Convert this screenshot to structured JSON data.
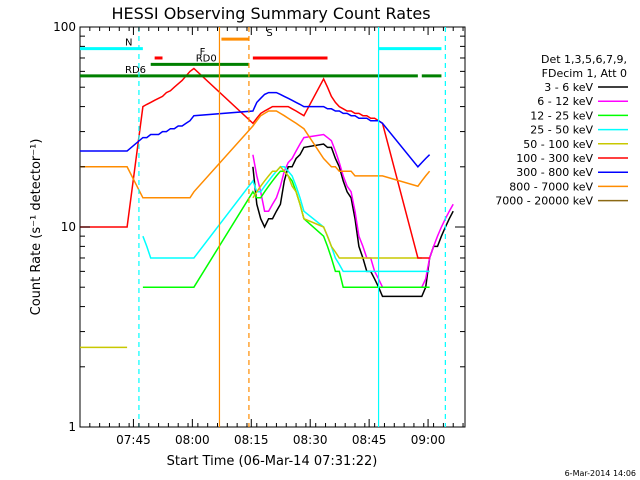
{
  "chart_data": {
    "type": "line",
    "title": "HESSI Observing Summary Count Rates",
    "xlabel": "Start Time (06-Mar-14 07:31:22)",
    "ylabel": "Count Rate (s⁻¹ detector⁻¹)",
    "yscale": "log",
    "ylim": [
      1,
      100
    ],
    "xlim_minutes": [
      0,
      98
    ],
    "x_ticks": [
      {
        "label": "07:45",
        "t": 13.6
      },
      {
        "label": "08:00",
        "t": 28.6
      },
      {
        "label": "08:15",
        "t": 43.6
      },
      {
        "label": "08:30",
        "t": 58.6
      },
      {
        "label": "08:45",
        "t": 73.6
      },
      {
        "label": "09:00",
        "t": 88.6
      }
    ],
    "y_ticks": [
      {
        "label": "1",
        "v": 1
      },
      {
        "label": "10",
        "v": 10
      },
      {
        "label": "100",
        "v": 100
      }
    ],
    "legend_header": [
      "Det 1,3,5,6,7,9,",
      "FDecim 1, Att 0"
    ],
    "legend_placement": "right",
    "grid": false,
    "footer_date": "6-Mar-2014 14:06",
    "series": [
      {
        "name": "3 - 6 keV",
        "color": "#000000",
        "values": [
          null,
          null,
          null,
          null,
          null,
          null,
          null,
          null,
          null,
          null,
          null,
          null,
          null,
          null,
          null,
          null,
          null,
          null,
          null,
          null,
          null,
          null,
          null,
          null,
          null,
          null,
          null,
          20,
          13,
          11,
          10,
          11,
          11,
          12,
          13,
          17,
          20,
          20,
          22,
          23,
          25,
          26,
          25,
          25,
          22,
          20,
          17,
          15,
          14,
          11,
          8,
          7,
          6,
          6,
          5.5,
          5,
          4.5,
          4.5,
          4.5,
          5,
          7,
          8,
          8,
          9,
          10,
          11,
          12,
          null,
          null,
          null,
          null
        ]
      },
      {
        "name": "6 - 12 keV",
        "color": "#ff00ff",
        "values": [
          null,
          null,
          null,
          null,
          null,
          null,
          null,
          null,
          null,
          null,
          null,
          null,
          null,
          null,
          null,
          null,
          null,
          null,
          null,
          null,
          null,
          null,
          null,
          null,
          null,
          null,
          null,
          23,
          18,
          15,
          12,
          12,
          13,
          14,
          16,
          19,
          21,
          22,
          24,
          26,
          28,
          29,
          28,
          27,
          24,
          21,
          18,
          16,
          15,
          12,
          9,
          8,
          7,
          7,
          6,
          5.5,
          5,
          5,
          5,
          5.5,
          7,
          8,
          9,
          10,
          11,
          12,
          13,
          null,
          null,
          null,
          null
        ]
      },
      {
        "name": "12 - 25 keV",
        "color": "#00ff00",
        "values": [
          null,
          null,
          null,
          null,
          null,
          null,
          null,
          null,
          null,
          null,
          null,
          null,
          null,
          5,
          5,
          5,
          5,
          5,
          5,
          5,
          5,
          5,
          5,
          5,
          5,
          5,
          5,
          15,
          14,
          14,
          15,
          16,
          17,
          18,
          19,
          19,
          18,
          17,
          15,
          13,
          11,
          9,
          8,
          7,
          6,
          6,
          5,
          5,
          5,
          5,
          5,
          5,
          5,
          5,
          5,
          5,
          5,
          5,
          5,
          5,
          5,
          null,
          null,
          null,
          null,
          null,
          null,
          null,
          null,
          null,
          null
        ]
      },
      {
        "name": "25 - 50 keV",
        "color": "#00ffff",
        "values": [
          null,
          null,
          null,
          null,
          null,
          null,
          null,
          null,
          null,
          null,
          null,
          null,
          null,
          9,
          8,
          7,
          7,
          7,
          7,
          7,
          7,
          7,
          7,
          7,
          7,
          7,
          7,
          17,
          15,
          15,
          16,
          17,
          18,
          19,
          20,
          20,
          19,
          18,
          16,
          14,
          12,
          10,
          9,
          8,
          7,
          6.5,
          6,
          6,
          6,
          6,
          6,
          6,
          6,
          6,
          6,
          6,
          6,
          6,
          6,
          6,
          6,
          null,
          null,
          null,
          null,
          null,
          null,
          null,
          null,
          null,
          null
        ]
      },
      {
        "name": "50 - 100 keV",
        "color": "#c8c800",
        "values": [
          2.5,
          2.5,
          2.5,
          2.5,
          2.5,
          2.5,
          2.5,
          2.5,
          2.5,
          2.5,
          2.5,
          2.5,
          2.5,
          null,
          null,
          null,
          null,
          null,
          null,
          null,
          null,
          null,
          null,
          null,
          null,
          null,
          null,
          14,
          15,
          16,
          17,
          18,
          19,
          19,
          20,
          19,
          18,
          16,
          15,
          13,
          11,
          10,
          9,
          8,
          7.5,
          7,
          7,
          7,
          7,
          7,
          7,
          7,
          7,
          7,
          7,
          7,
          7,
          7,
          7,
          null,
          null,
          null,
          null,
          null,
          null,
          null,
          null,
          null,
          null,
          null,
          null
        ]
      },
      {
        "name": "100 - 300 keV",
        "color": "#ff0000",
        "values": [
          10,
          10,
          10,
          10,
          10,
          10,
          10,
          10,
          10,
          10,
          10,
          10,
          10,
          40,
          41,
          42,
          43,
          44,
          45,
          47,
          48,
          50,
          52,
          54,
          57,
          60,
          62,
          33,
          35,
          37,
          38,
          39,
          40,
          40,
          40,
          40,
          40,
          39,
          38,
          37,
          36,
          55,
          50,
          45,
          42,
          40,
          39,
          38,
          38,
          37,
          37,
          36,
          36,
          35,
          35,
          34,
          33,
          7,
          7,
          7,
          7,
          null,
          null,
          null,
          null,
          null,
          null,
          null,
          null,
          null,
          null
        ]
      },
      {
        "name": "300 - 800 keV",
        "color": "#0000ff",
        "values": [
          24,
          24,
          24,
          24,
          24,
          24,
          24,
          24,
          24,
          24,
          24,
          24,
          24,
          28,
          28,
          29,
          29,
          29,
          30,
          30,
          31,
          31,
          32,
          32,
          33,
          34,
          36,
          38,
          42,
          44,
          46,
          47,
          47,
          47,
          46,
          45,
          44,
          43,
          42,
          41,
          40,
          40,
          39,
          39,
          38,
          38,
          37,
          37,
          36,
          36,
          35,
          35,
          35,
          34,
          34,
          34,
          33,
          20,
          21,
          22,
          23,
          null,
          null,
          null,
          null,
          null,
          null,
          null,
          null,
          null,
          null
        ]
      },
      {
        "name": "800 - 7000 keV",
        "color": "#ff8c00",
        "values": [
          20,
          20,
          20,
          20,
          20,
          20,
          20,
          20,
          20,
          20,
          20,
          20,
          20,
          14,
          14,
          14,
          14,
          14,
          14,
          14,
          14,
          14,
          14,
          14,
          14,
          14,
          15,
          32,
          34,
          36,
          37,
          38,
          38,
          38,
          37,
          36,
          35,
          34,
          33,
          32,
          31,
          22,
          21,
          20,
          20,
          19,
          19,
          19,
          19,
          18,
          18,
          18,
          18,
          18,
          18,
          18,
          18,
          16,
          17,
          18,
          19,
          null,
          null,
          null,
          null,
          null,
          null,
          null,
          null,
          null,
          null
        ]
      },
      {
        "name": "7000 - 20000 keV",
        "color": "#8b6914",
        "values": [
          null,
          null,
          null,
          null,
          null,
          null,
          null,
          null,
          null,
          null,
          null,
          null,
          null,
          null,
          null,
          null,
          null,
          null,
          null,
          null,
          null,
          null,
          null,
          null,
          null,
          null,
          null,
          null,
          null,
          null,
          null,
          null,
          null,
          null,
          null,
          null,
          null,
          null,
          null,
          null,
          null,
          null,
          null,
          null,
          null,
          null,
          null,
          null,
          null,
          null,
          null,
          null,
          null,
          null,
          null,
          null,
          null,
          null,
          null,
          null,
          null,
          null,
          null,
          null,
          null,
          null,
          null,
          null,
          null,
          null,
          null
        ]
      }
    ],
    "series_x_minutes": [
      0,
      1,
      2,
      3,
      4,
      5,
      6,
      7,
      8,
      9,
      10,
      11,
      12,
      16,
      17,
      18,
      19,
      20,
      21,
      22,
      23,
      24,
      25,
      26,
      27,
      28,
      29,
      44,
      45,
      46,
      47,
      48,
      49,
      50,
      51,
      52,
      53,
      54,
      55,
      56,
      57,
      62,
      63,
      64,
      65,
      66,
      67,
      68,
      69,
      70,
      71,
      72,
      73,
      74,
      75,
      76,
      77,
      86,
      87,
      88,
      89,
      90,
      91,
      92,
      93,
      94,
      95,
      96,
      97,
      98,
      98
    ],
    "flags": [
      {
        "label": "N",
        "color": "#00ffff",
        "segments": [
          [
            0,
            16
          ],
          [
            76,
            92
          ]
        ],
        "level": 78
      },
      {
        "label": "F",
        "color": "#ff0000",
        "segments": [
          [
            19,
            21
          ]
        ],
        "level": 70
      },
      {
        "label": "S",
        "color": "#ff8c00",
        "segments": [
          [
            36,
            43
          ]
        ],
        "level": 87
      },
      {
        "label": "",
        "color": "#ff0000",
        "segments": [
          [
            44,
            63
          ]
        ],
        "level": 70
      },
      {
        "label": "RD0",
        "color": "#008000",
        "segments": [
          [
            18,
            43
          ]
        ],
        "level": 65
      },
      {
        "label": "RD6",
        "color": "#008000",
        "segments": [
          [
            0,
            43
          ],
          [
            43,
            86
          ],
          [
            87,
            92
          ]
        ],
        "level": 57
      }
    ],
    "vlines": [
      {
        "t": 15,
        "color": "#00ffff",
        "style": "dashed"
      },
      {
        "t": 93,
        "color": "#00ffff",
        "style": "dashed"
      },
      {
        "t": 76,
        "color": "#00ffff",
        "style": "solid"
      },
      {
        "t": 35.5,
        "color": "#ff8c00",
        "style": "solid"
      },
      {
        "t": 43,
        "color": "#ff8c00",
        "style": "dashed"
      }
    ]
  }
}
